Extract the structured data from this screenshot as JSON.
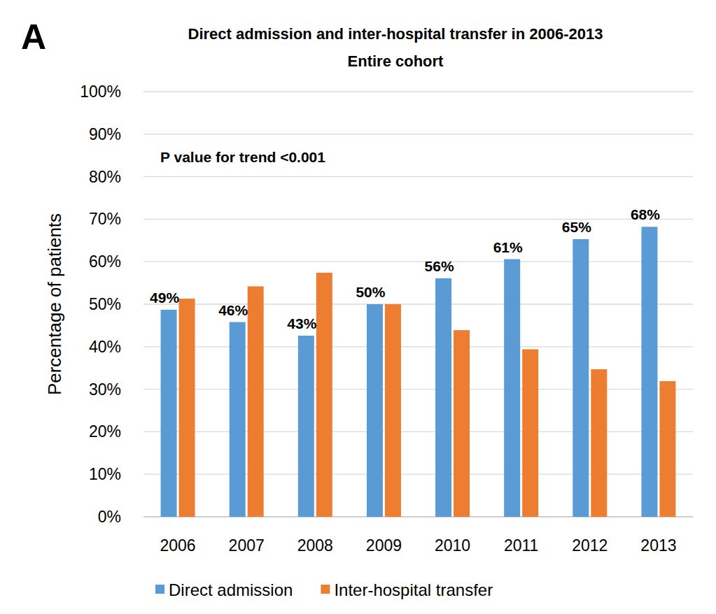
{
  "chart_data": {
    "type": "bar",
    "title": "Direct admission and inter-hospital transfer in 2006-2013",
    "subtitle": "Entire cohort",
    "annotations": [
      "A",
      "P value for trend <0.001"
    ],
    "y_label": "Percentage of patients",
    "categories": [
      "2006",
      "2007",
      "2008",
      "2009",
      "2010",
      "2011",
      "2012",
      "2013"
    ],
    "series": [
      {
        "name": "Direct admission",
        "color": "#5b9bd5",
        "values": [
          48.7,
          45.8,
          42.6,
          50,
          56.1,
          60.6,
          65.3,
          68.2
        ],
        "value_labels": [
          "49%",
          "46%",
          "43%",
          "50%",
          "56%",
          "61%",
          "65%",
          "68%"
        ],
        "data_labels": true
      },
      {
        "name": "Inter-hospital transfer",
        "color": "#ed7d31",
        "values": [
          51.3,
          54.2,
          57.4,
          50,
          43.9,
          39.4,
          34.7,
          31.9
        ]
      }
    ],
    "ylim": [
      0,
      100
    ],
    "yticks": [
      {
        "value": 0,
        "label": "0%"
      },
      {
        "value": 10,
        "label": "10%"
      },
      {
        "value": 20,
        "label": "20%"
      },
      {
        "value": 30,
        "label": "30%"
      },
      {
        "value": 40,
        "label": "40%"
      },
      {
        "value": 50,
        "label": "50%"
      },
      {
        "value": 60,
        "label": "60%"
      },
      {
        "value": 70,
        "label": "70%"
      },
      {
        "value": 80,
        "label": "80%"
      },
      {
        "value": 90,
        "label": "90%"
      },
      {
        "value": 100,
        "label": "100%"
      }
    ],
    "grid": true,
    "legend": "bottom"
  }
}
